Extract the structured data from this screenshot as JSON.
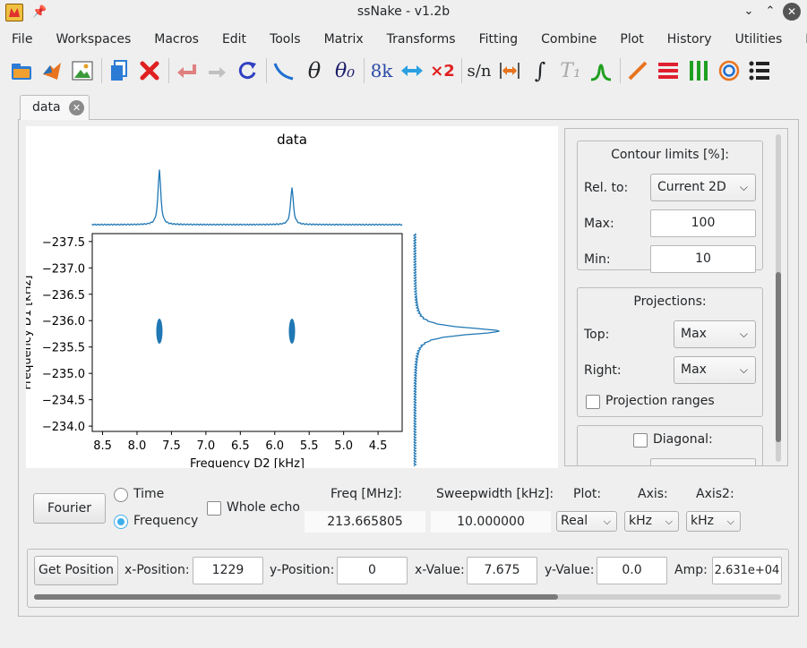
{
  "window": {
    "title": "ssNake - v1.2b",
    "controls": [
      "minimize",
      "maximize",
      "close"
    ]
  },
  "menu": [
    "File",
    "Workspaces",
    "Macros",
    "Edit",
    "Tools",
    "Matrix",
    "Transforms",
    "Fitting",
    "Combine",
    "Plot",
    "History",
    "Utilities",
    "Help"
  ],
  "toolbar": {
    "icons": [
      "open-folder-icon",
      "matlab-icon",
      "image-export-icon",
      "copy-icon",
      "delete-icon",
      "undo-icon",
      "redo-icon",
      "reload-icon",
      "phase-icon",
      "theta-icon",
      "theta0-icon",
      "sizing-icon",
      "swap-icon",
      "zerofill-icon",
      "snr-icon",
      "sweepwidth-icon",
      "integral-icon",
      "t1-icon",
      "peak-icon",
      "line-plot-icon",
      "stack-plot-icon",
      "array-plot-icon",
      "contour-plot-icon",
      "list-icon"
    ],
    "glyphs": {
      "theta": "θ",
      "theta0": "θ₀",
      "sizing": "8k",
      "zerofill": "×2",
      "snr": "s/n",
      "integral": "∫",
      "t1": "T₁"
    }
  },
  "tab": {
    "label": "data"
  },
  "plot": {
    "title": "data",
    "xlabel": "Frequency D2 [kHz]",
    "ylabel": "Frequency D1 [kHz]",
    "x_ticks": [
      "8.5",
      "8.0",
      "7.5",
      "7.0",
      "6.5",
      "6.0",
      "5.5",
      "5.0",
      "4.5"
    ],
    "y_ticks": [
      "−237.5",
      "−237.0",
      "−236.5",
      "−236.0",
      "−235.5",
      "−235.0",
      "−234.5",
      "−234.0"
    ],
    "line_color": "#1f77b4"
  },
  "chart_data": {
    "type": "scatter",
    "title": "data",
    "xlabel": "Frequency D2 [kHz]",
    "ylabel": "Frequency D1 [kHz]",
    "xlim": [
      8.65,
      4.15
    ],
    "ylim": [
      -237.65,
      -233.9
    ],
    "peaks": [
      {
        "x": 7.675,
        "y": -235.8
      },
      {
        "x": 5.75,
        "y": -235.8
      }
    ],
    "top_projection_peaks": [
      7.675,
      5.75
    ],
    "right_projection_peak": -235.8
  },
  "side": {
    "contour_title": "Contour limits [%]:",
    "rel_to_label": "Rel. to:",
    "rel_to_value": "Current 2D",
    "max_label": "Max:",
    "max_value": "100",
    "min_label": "Min:",
    "min_value": "10",
    "projections_title": "Projections:",
    "top_label": "Top:",
    "top_value": "Max",
    "right_label": "Right:",
    "right_value": "Max",
    "projection_ranges_label": "Projection ranges",
    "diagonal_label": "Diagonal:"
  },
  "controls": {
    "fourier_label": "Fourier",
    "time_label": "Time",
    "frequency_label": "Frequency",
    "whole_echo_label": "Whole echo",
    "freq_header": "Freq [MHz]:",
    "freq_value": "213.665805",
    "sw_header": "Sweepwidth [kHz]:",
    "sw_value": "10.000000",
    "plot_header": "Plot:",
    "plot_value": "Real",
    "axis_header": "Axis:",
    "axis_value": "kHz",
    "axis2_header": "Axis2:",
    "axis2_value": "kHz"
  },
  "position": {
    "get_position_label": "Get Position",
    "x_pos_label": "x-Position:",
    "x_pos_value": "1229",
    "y_pos_label": "y-Position:",
    "y_pos_value": "0",
    "x_val_label": "x-Value:",
    "x_val_value": "7.675",
    "y_val_label": "y-Value:",
    "y_val_value": "0.0",
    "amp_label": "Amp:",
    "amp_value": "2.631e+04"
  }
}
